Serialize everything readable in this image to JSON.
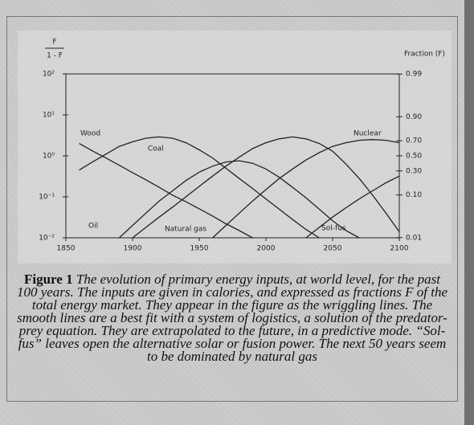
{
  "chart_data": {
    "type": "line",
    "ylabel_numerator": "F",
    "ylabel_denominator": "1 - F",
    "y2label": "Fraction (F)",
    "yscale": "log",
    "y2scale": "logit",
    "xlim": [
      1850,
      2100
    ],
    "xticks": [
      1850,
      1900,
      1950,
      2000,
      2050,
      2100
    ],
    "ylim": [
      0.01,
      100
    ],
    "yticks": [
      {
        "value": 100,
        "label": "10²"
      },
      {
        "value": 10,
        "label": "10¹"
      },
      {
        "value": 1,
        "label": "10⁰"
      },
      {
        "value": 0.1,
        "label": "10⁻¹"
      },
      {
        "value": 0.01,
        "label": "10⁻²"
      }
    ],
    "y2lim": [
      0.0099,
      0.9901
    ],
    "y2ticks": [
      0.99,
      {
        "value": 0.9,
        "label": "0.90"
      },
      {
        "value": 0.7,
        "label": "0.70"
      },
      {
        "value": 0.5,
        "label": "0.50"
      },
      {
        "value": 0.3,
        "label": "0.30"
      },
      {
        "value": 0.1,
        "label": "0.10"
      },
      0.01
    ],
    "grid": false,
    "series": [
      {
        "name": "Wood",
        "color": "#222222",
        "x": [
          1860,
          1870,
          1880,
          1890,
          1900,
          1910,
          1920,
          1930,
          1940,
          1950,
          1960,
          1970,
          1980,
          1990
        ],
        "values": [
          2,
          1.32,
          0.89,
          0.59,
          0.39,
          0.26,
          0.17,
          0.11,
          0.076,
          0.051,
          0.034,
          0.022,
          0.015,
          0.01
        ]
      },
      {
        "name": "Coal",
        "color": "#222222",
        "x": [
          1860,
          1870,
          1880,
          1890,
          1900,
          1910,
          1920,
          1930,
          1940,
          1950,
          1960,
          1970,
          1980,
          1990,
          2000,
          2010,
          2020,
          2030,
          2040
        ],
        "values": [
          0.45,
          0.71,
          1.1,
          1.7,
          2.2,
          2.7,
          2.9,
          2.7,
          2.1,
          1.4,
          0.89,
          0.5,
          0.28,
          0.16,
          0.089,
          0.05,
          0.028,
          0.016,
          0.01
        ]
      },
      {
        "name": "Oil",
        "color": "#222222",
        "x": [
          1890,
          1900,
          1910,
          1920,
          1930,
          1940,
          1950,
          1960,
          1970,
          1980,
          1990,
          2000,
          2010,
          2020,
          2030,
          2040,
          2050,
          2060,
          2070
        ],
        "values": [
          0.01,
          0.02,
          0.04,
          0.079,
          0.14,
          0.25,
          0.4,
          0.56,
          0.71,
          0.76,
          0.66,
          0.48,
          0.3,
          0.17,
          0.095,
          0.05,
          0.026,
          0.015,
          0.01
        ]
      },
      {
        "name": "Natural gas",
        "color": "#222222",
        "x": [
          1900,
          1910,
          1920,
          1930,
          1940,
          1950,
          1960,
          1970,
          1980,
          1990,
          2000,
          2010,
          2020,
          2030,
          2040,
          2050,
          2060,
          2070,
          2080,
          2090,
          2100
        ],
        "values": [
          0.01,
          0.018,
          0.032,
          0.056,
          0.1,
          0.18,
          0.32,
          0.56,
          0.93,
          1.5,
          2.1,
          2.6,
          2.9,
          2.6,
          2,
          1.3,
          0.63,
          0.28,
          0.11,
          0.04,
          0.014
        ]
      },
      {
        "name": "Nuclear",
        "color": "#222222",
        "x": [
          1960,
          1970,
          1980,
          1990,
          2000,
          2010,
          2020,
          2030,
          2040,
          2050,
          2060,
          2070,
          2080,
          2090,
          2100
        ],
        "values": [
          0.01,
          0.02,
          0.04,
          0.079,
          0.15,
          0.28,
          0.48,
          0.79,
          1.2,
          1.7,
          2.1,
          2.4,
          2.5,
          2.4,
          2.1
        ]
      },
      {
        "name": "Sol-fus",
        "color": "#222222",
        "x": [
          2030,
          2040,
          2050,
          2060,
          2070,
          2080,
          2090,
          2100
        ],
        "values": [
          0.01,
          0.018,
          0.032,
          0.054,
          0.089,
          0.14,
          0.22,
          0.32
        ]
      }
    ],
    "caption_label": "Figure 1",
    "caption": "The evolution of primary energy inputs, at world level, for the past 100 years. The inputs are given in calories, and expressed as fractions F of the total energy market. They appear in the figure as the wriggling lines. The smooth lines are a best fit with a system of logistics, a solution of the predator-prey equation. They are extrapolated to the future, in a predictive mode. “Sol-fus” leaves open the alternative solar or fusion power. The next 50 years seem to be dominated by natural gas"
  }
}
